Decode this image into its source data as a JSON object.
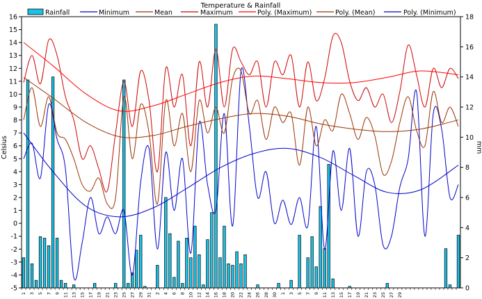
{
  "chart_data": {
    "type": "bar+line",
    "title": "Temperature & Rainfall",
    "ylabel_left": "Celsius",
    "ylabel_right": "mm",
    "ylim_left": [
      -5,
      16
    ],
    "ylim_right": [
      0,
      18
    ],
    "y_ticks_left": [
      -5,
      -4,
      -3,
      -2,
      -1,
      0,
      1,
      2,
      3,
      4,
      5,
      6,
      7,
      8,
      9,
      10,
      11,
      12,
      13,
      14,
      15,
      16
    ],
    "y_ticks_right": [
      0,
      2,
      4,
      6,
      8,
      10,
      12,
      14,
      16,
      18
    ],
    "grid": false,
    "legend_position": "top",
    "x_labels": [
      "1",
      "3",
      "5",
      "7",
      "9",
      "11",
      "13",
      "15",
      "17",
      "19",
      "21",
      "23",
      "25",
      "27",
      "29",
      "31",
      "2",
      "4",
      "6",
      "8",
      "10",
      "12",
      "14",
      "16",
      "18",
      "20",
      "22",
      "24",
      "26",
      "28",
      "30",
      "1",
      "3",
      "5",
      "7",
      "9",
      "11",
      "13",
      "15",
      "17",
      "19",
      "21",
      "23",
      "25",
      "27",
      "29"
    ],
    "colors": {
      "rainfall_fill": "#19c3e8",
      "rainfall_stroke": "#000000",
      "minimum": "#0000cc",
      "mean": "#993300",
      "maximum": "#cc0000",
      "poly_maximum": "#ff0000",
      "poly_mean": "#993300",
      "poly_minimum": "#0000cc"
    },
    "legend": [
      "Rainfall",
      "Minimum",
      "Mean",
      "Maximum",
      "Poly. (Maximum)",
      "Poly. (Mean)",
      "Poly. (Minimum)"
    ],
    "series": [
      {
        "name": "Rainfall",
        "axis": "right",
        "type": "bar",
        "x": [
          1,
          2,
          3,
          4,
          5,
          6,
          7,
          8,
          9,
          10,
          11,
          13,
          18,
          23,
          25,
          26,
          27,
          28,
          29,
          30,
          33,
          35,
          36,
          37,
          38,
          39,
          40,
          41,
          42,
          43,
          44,
          45,
          46,
          47,
          48,
          49,
          50,
          51,
          52,
          53,
          54,
          57,
          62,
          65,
          67,
          69,
          70,
          71,
          72,
          73,
          74,
          75,
          79,
          88,
          102,
          103,
          105
        ],
        "values": [
          2.0,
          13.8,
          1.6,
          0.5,
          3.4,
          3.3,
          2.8,
          14.0,
          3.3,
          0.5,
          0.3,
          0.2,
          0.3,
          0.3,
          13.8,
          0.3,
          1.0,
          2.5,
          3.5,
          0.1,
          1.5,
          6.0,
          3.6,
          0.7,
          3.1,
          0.3,
          3.3,
          2.0,
          4.1,
          2.2,
          0.2,
          3.2,
          5.0,
          17.5,
          2.0,
          4.1,
          1.6,
          1.5,
          2.4,
          1.6,
          2.2,
          0.2,
          0.3,
          0.5,
          3.5,
          2.0,
          3.4,
          1.4,
          5.4,
          2.6,
          8.2,
          0.6,
          0.1,
          0.3,
          2.6,
          0.2,
          3.5
        ]
      },
      {
        "name": "Minimum",
        "axis": "left",
        "type": "line",
        "x": [
          1,
          3,
          5,
          7,
          9,
          11,
          13,
          15,
          17,
          19,
          21,
          23,
          25,
          27,
          29,
          31,
          33,
          35,
          37,
          39,
          41,
          43,
          45,
          47,
          49,
          51,
          53,
          55,
          57,
          59,
          61,
          63,
          65,
          67,
          69,
          71,
          73,
          75,
          77,
          79,
          81,
          83,
          85,
          87,
          89,
          91,
          93,
          95,
          97,
          99,
          101,
          103,
          105
        ],
        "values": [
          5.0,
          6.2,
          3.5,
          9.2,
          6.5,
          4.2,
          -4.2,
          -1.5,
          2.0,
          -0.8,
          0.5,
          -0.8,
          1.0,
          -4.0,
          3.2,
          5.8,
          -2.0,
          5.5,
          1.0,
          5.0,
          -2.3,
          7.8,
          3.0,
          1.0,
          8.5,
          -0.2,
          11.8,
          7.5,
          2.0,
          4.0,
          0.0,
          1.8,
          -0.1,
          2.0,
          -0.2,
          7.5,
          -2.0,
          5.6,
          1.0,
          5.8,
          -1.0,
          4.0,
          3.0,
          -1.7,
          -1.0,
          2.8,
          5.0,
          10.2,
          -1.0,
          8.5,
          7.3,
          2.0,
          3.0
        ]
      },
      {
        "name": "Mean",
        "axis": "left",
        "type": "line",
        "x": [
          1,
          3,
          5,
          7,
          9,
          11,
          13,
          15,
          17,
          19,
          21,
          23,
          25,
          27,
          29,
          31,
          33,
          35,
          37,
          39,
          41,
          43,
          45,
          47,
          49,
          51,
          53,
          55,
          57,
          59,
          61,
          63,
          65,
          67,
          69,
          71,
          73,
          75,
          77,
          79,
          81,
          83,
          85,
          87,
          89,
          91,
          93,
          95,
          97,
          99,
          101,
          103,
          105
        ],
        "values": [
          8.0,
          10.5,
          7.5,
          9.8,
          7.0,
          6.5,
          5.0,
          3.0,
          2.5,
          3.5,
          1.5,
          2.0,
          9.8,
          5.0,
          9.2,
          7.0,
          1.5,
          9.5,
          6.0,
          8.5,
          4.0,
          9.5,
          7.0,
          9.0,
          7.0,
          11.2,
          11.8,
          8.5,
          9.5,
          6.5,
          9.0,
          7.8,
          8.5,
          4.5,
          9.0,
          6.0,
          8.0,
          7.2,
          10.0,
          8.5,
          6.5,
          8.2,
          6.8,
          3.8,
          4.8,
          7.8,
          9.8,
          7.2,
          6.0,
          10.2,
          7.8,
          9.0,
          7.5
        ]
      },
      {
        "name": "Maximum",
        "axis": "left",
        "type": "line",
        "x": [
          1,
          3,
          5,
          7,
          9,
          11,
          13,
          15,
          17,
          19,
          21,
          23,
          25,
          27,
          29,
          31,
          33,
          35,
          37,
          39,
          41,
          43,
          45,
          47,
          49,
          51,
          53,
          55,
          57,
          59,
          61,
          63,
          65,
          67,
          69,
          71,
          73,
          75,
          77,
          79,
          81,
          83,
          85,
          87,
          89,
          91,
          93,
          95,
          97,
          99,
          101,
          103,
          105
        ],
        "values": [
          10.9,
          13.0,
          10.8,
          14.2,
          13.0,
          9.8,
          8.0,
          5.0,
          6.0,
          4.2,
          2.5,
          7.0,
          11.0,
          7.5,
          11.8,
          9.5,
          4.0,
          12.0,
          9.0,
          11.5,
          6.0,
          12.5,
          9.0,
          13.5,
          9.0,
          13.5,
          12.5,
          11.5,
          12.5,
          9.0,
          12.5,
          11.5,
          13.0,
          9.0,
          12.5,
          9.5,
          11.2,
          14.5,
          14.0,
          11.0,
          9.5,
          10.5,
          9.0,
          10.0,
          7.8,
          10.2,
          13.8,
          11.5,
          9.0,
          12.0,
          10.5,
          12.0,
          11.2
        ]
      },
      {
        "name": "Poly. (Maximum)",
        "axis": "left",
        "type": "trend",
        "x": [
          1,
          8,
          16,
          24,
          32,
          40,
          48,
          56,
          64,
          72,
          80,
          88,
          96,
          105
        ],
        "values": [
          14.0,
          12.2,
          10.0,
          8.7,
          9.1,
          10.0,
          10.9,
          11.4,
          11.2,
          10.9,
          10.9,
          11.3,
          11.8,
          11.5
        ]
      },
      {
        "name": "Poly. (Mean)",
        "axis": "left",
        "type": "trend",
        "x": [
          1,
          8,
          16,
          24,
          32,
          40,
          48,
          56,
          64,
          72,
          80,
          88,
          96,
          105
        ],
        "values": [
          11.3,
          9.7,
          7.8,
          6.7,
          6.8,
          7.5,
          8.1,
          8.5,
          8.3,
          7.7,
          7.3,
          7.1,
          7.3,
          8.0
        ]
      },
      {
        "name": "Poly. (Minimum)",
        "axis": "left",
        "type": "trend",
        "x": [
          1,
          8,
          16,
          24,
          32,
          40,
          48,
          56,
          64,
          72,
          80,
          88,
          96,
          105
        ],
        "values": [
          7.0,
          4.0,
          1.3,
          0.5,
          1.2,
          2.7,
          4.3,
          5.4,
          5.8,
          5.1,
          3.7,
          2.4,
          2.6,
          4.5
        ]
      }
    ]
  }
}
